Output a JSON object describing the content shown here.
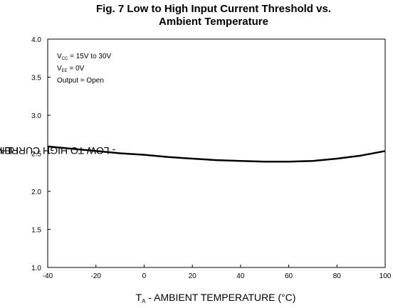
{
  "chart_data": {
    "type": "line",
    "title_line1": "Fig. 7 Low to High Input Current Threshold vs.",
    "title_line2": "Ambient Temperature",
    "ylabel": {
      "main": "I",
      "sub": "FLH",
      "rest": " - LOW TO HIGH CURRENT THRESHOLD (mA)"
    },
    "xlabel": {
      "main": "T",
      "sub": "A",
      "rest": " - AMBIENT TEMPERATURE (",
      "unit": "°C",
      "end": ")"
    },
    "annotations": [
      {
        "main": "V",
        "sub": "CC",
        "rest": " = 15V to 30V"
      },
      {
        "main": "V",
        "sub": "EE",
        "rest": " = 0V"
      },
      {
        "main": "Output = Open",
        "sub": "",
        "rest": ""
      }
    ],
    "xlim": [
      -40,
      100
    ],
    "ylim": [
      1.0,
      4.0
    ],
    "xticks": [
      "-40",
      "-20",
      "0",
      "20",
      "40",
      "60",
      "80",
      "100"
    ],
    "yticks": [
      "1.0",
      "1.5",
      "2.0",
      "2.5",
      "3.0",
      "3.5",
      "4.0"
    ],
    "grid": false,
    "series": [
      {
        "x": [
          -40,
          -30,
          -20,
          -10,
          0,
          10,
          20,
          30,
          40,
          50,
          60,
          70,
          80,
          90,
          100
        ],
        "y": [
          2.59,
          2.56,
          2.53,
          2.5,
          2.48,
          2.45,
          2.43,
          2.41,
          2.4,
          2.39,
          2.39,
          2.4,
          2.43,
          2.47,
          2.53
        ]
      }
    ]
  }
}
